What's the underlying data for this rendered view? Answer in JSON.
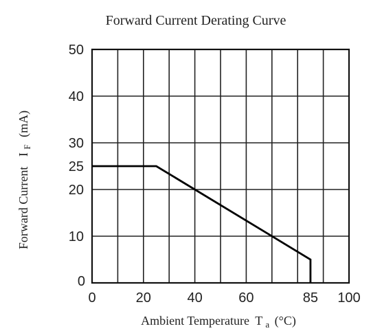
{
  "chart_data": {
    "type": "line",
    "title": "Forward Current Derating Curve",
    "xlabel": "Ambient Temperature",
    "xlabel_symbol": "T",
    "xlabel_subscript": "a",
    "xlabel_unit": "(°C)",
    "ylabel": "Forward Current",
    "ylabel_symbol": "I",
    "ylabel_subscript": "F",
    "ylabel_unit": "(mA)",
    "xlim": [
      0,
      100
    ],
    "ylim": [
      0,
      50
    ],
    "x_ticks": [
      "0",
      "20",
      "40",
      "60",
      "85",
      "100"
    ],
    "x_tick_values": [
      0,
      20,
      40,
      60,
      85,
      100
    ],
    "y_ticks": [
      "0",
      "10",
      "20",
      "25",
      "30",
      "40",
      "50"
    ],
    "y_tick_values": [
      0,
      10,
      20,
      25,
      30,
      40,
      50
    ],
    "x_grid": [
      0,
      10,
      20,
      30,
      40,
      50,
      60,
      70,
      80,
      90,
      100
    ],
    "y_grid": [
      0,
      10,
      20,
      30,
      40,
      50
    ],
    "grid": true,
    "series": [
      {
        "x": [
          0,
          25,
          85,
          85
        ],
        "y": [
          25,
          25,
          5,
          0
        ]
      }
    ]
  }
}
